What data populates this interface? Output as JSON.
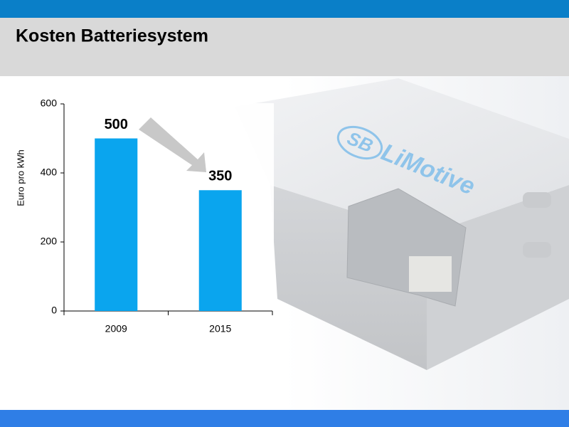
{
  "header": {
    "title": "Kosten Batteriesystem"
  },
  "image": {
    "logo_mark": "SB",
    "logo_text": "LiMotive"
  },
  "chart_data": {
    "type": "bar",
    "y_label": "Euro pro kWh",
    "categories": [
      "2009",
      "2015"
    ],
    "values": [
      500,
      350
    ],
    "color": "#0aa5ee",
    "ylim": [
      0,
      600
    ],
    "yticks": [
      0,
      200,
      400,
      600
    ],
    "grid": false
  }
}
